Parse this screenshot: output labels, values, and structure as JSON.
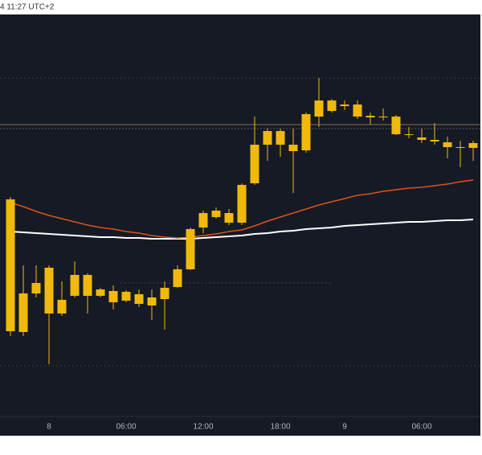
{
  "header": {
    "timestamp": "4 11:27 UTC+2"
  },
  "chart_data": {
    "type": "candlestick",
    "x": [
      null,
      null,
      null,
      "8",
      null,
      null,
      null,
      null,
      null,
      "06:00",
      null,
      null,
      null,
      null,
      null,
      "12:00",
      null,
      null,
      null,
      null,
      null,
      "18:00",
      null,
      null,
      null,
      null,
      "9",
      null,
      null,
      null,
      null,
      null,
      "06:00",
      null,
      null,
      null,
      null
    ],
    "open": [
      106,
      105,
      153,
      128,
      128,
      150,
      150,
      150,
      142,
      144,
      140,
      138,
      146,
      161,
      183,
      235,
      248,
      241,
      241,
      290,
      338,
      338,
      330,
      331,
      373,
      380,
      386,
      373,
      372,
      372,
      351,
      350,
      344,
      342,
      335,
      334,
      334
    ],
    "high": [
      273,
      188,
      188,
      188,
      168,
      193,
      178,
      160,
      163,
      157,
      158,
      158,
      168,
      188,
      235,
      256,
      260,
      258,
      290,
      373,
      358,
      358,
      358,
      378,
      421,
      395,
      393,
      393,
      378,
      383,
      375,
      360,
      358,
      365,
      348,
      343,
      343
    ],
    "low": [
      100,
      100,
      148,
      65,
      125,
      148,
      128,
      148,
      133,
      142,
      136,
      120,
      108,
      160,
      182,
      228,
      246,
      238,
      238,
      288,
      318,
      323,
      278,
      328,
      360,
      378,
      381,
      370,
      363,
      368,
      350,
      346,
      340,
      338,
      321,
      310,
      318
    ],
    "close": [
      270,
      153,
      166,
      185,
      145,
      176,
      176,
      158,
      156,
      155,
      152,
      148,
      160,
      183,
      233,
      253,
      256,
      253,
      288,
      338,
      355,
      355,
      338,
      376,
      393,
      393,
      388,
      388,
      374,
      373,
      373,
      351,
      347,
      344,
      341,
      335,
      340
    ],
    "color": "#f0b90b",
    "series": [
      {
        "color": "#ffffff",
        "values": [
          230,
          229,
          228,
          227,
          226,
          225,
          224,
          223,
          223,
          222,
          222,
          221,
          221,
          221,
          221,
          222,
          223,
          224,
          225,
          227,
          228,
          230,
          231,
          233,
          234,
          235,
          237,
          238,
          239,
          240,
          241,
          242,
          242,
          243,
          244,
          244,
          245
        ]
      },
      {
        "color": "#d9541e",
        "values": [
          266,
          261,
          255,
          250,
          246,
          242,
          238,
          235,
          233,
          230,
          228,
          225,
          223,
          222,
          223,
          225,
          227,
          230,
          232,
          237,
          243,
          248,
          253,
          258,
          263,
          267,
          271,
          275,
          277,
          280,
          282,
          284,
          285,
          287,
          289,
          292,
          294
        ]
      }
    ],
    "ylim": [
      0,
      500
    ]
  }
}
